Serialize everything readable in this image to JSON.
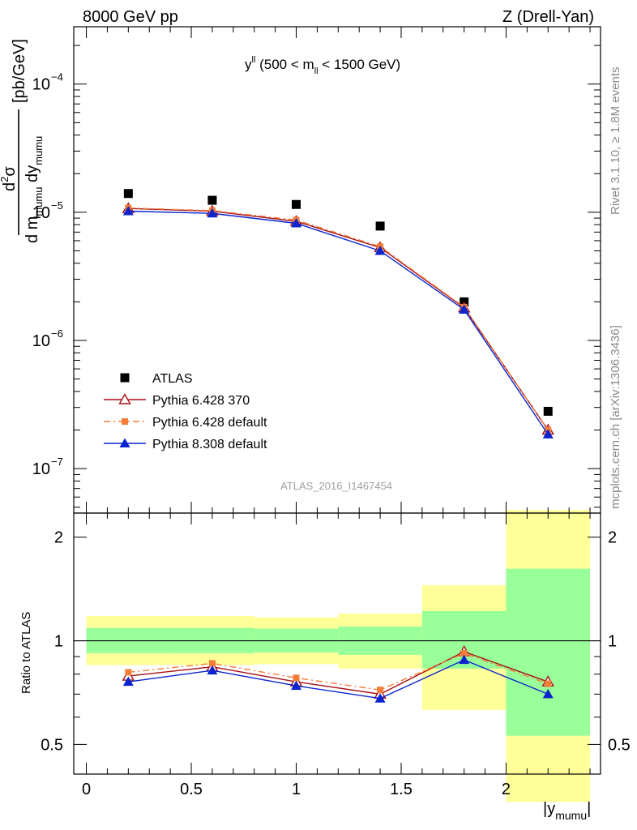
{
  "header": {
    "left": "8000 GeV pp",
    "right": "Z (Drell-Yan)"
  },
  "side_labels": {
    "rivet": "Rivet 3.1.10, ≥ 1.8M events",
    "mcplots": "mcplots.cern.ch [arXiv:1306.3436]"
  },
  "upper_panel": {
    "title": "y^ll (500 < m_ll < 1500 GeV)",
    "ylabel": "d²σ / d m_mumu dy_mumu [pb/GeV]",
    "watermark": "ATLAS_2016_I1467454",
    "y_ticks": [
      "10^-7",
      "10^-6",
      "10^-5",
      "10^-4"
    ]
  },
  "lower_panel": {
    "ylabel": "Ratio to ATLAS",
    "y_ticks": [
      "0.5",
      "1",
      "2"
    ],
    "x_ticks": [
      "0",
      "0.5",
      "1",
      "1.5",
      "2"
    ],
    "xlabel": "|y_mumu|"
  },
  "legend": [
    {
      "label": "ATLAS",
      "color": "#000000",
      "marker": "filled-square"
    },
    {
      "label": "Pythia 6.428 370",
      "color": "#a50f15",
      "marker": "open-triangle"
    },
    {
      "label": "Pythia 6.428 default",
      "color": "#f47d3a",
      "marker": "filled-square-dashdot"
    },
    {
      "label": "Pythia 8.308 default",
      "color": "#0b24ce",
      "marker": "filled-triangle"
    }
  ],
  "chart_data": [
    {
      "type": "scatter",
      "panel": "main",
      "yscale": "log",
      "xlim": [
        -0.06,
        2.45
      ],
      "ylim": [
        4.5e-08,
        0.00028
      ],
      "x": [
        0.2,
        0.6,
        1.0,
        1.4,
        1.8,
        2.2
      ],
      "series": [
        {
          "name": "ATLAS",
          "values": [
            1.4e-05,
            1.24e-05,
            1.15e-05,
            7.8e-06,
            2e-06,
            2.8e-07
          ]
        },
        {
          "name": "Pythia 6.428 370",
          "values": [
            1.07e-05,
            1.02e-05,
            8.5e-06,
            5.3e-06,
            1.8e-06,
            2e-07
          ]
        },
        {
          "name": "Pythia 6.428 default",
          "values": [
            1.08e-05,
            1.03e-05,
            8.7e-06,
            5.4e-06,
            1.82e-06,
            2e-07
          ]
        },
        {
          "name": "Pythia 8.308 default",
          "values": [
            1.02e-05,
            9.8e-06,
            8.2e-06,
            5e-06,
            1.74e-06,
            1.85e-07
          ]
        }
      ]
    },
    {
      "type": "line",
      "panel": "ratio",
      "yscale": "log",
      "xlim": [
        -0.06,
        2.45
      ],
      "ylim": [
        0.41,
        2.35
      ],
      "x": [
        0.2,
        0.6,
        1.0,
        1.4,
        1.8,
        2.2
      ],
      "bands": [
        {
          "xlo": 0.0,
          "xhi": 0.4,
          "inner": [
            0.92,
            1.09
          ],
          "outer": [
            0.85,
            1.18
          ]
        },
        {
          "xlo": 0.4,
          "xhi": 0.8,
          "inner": [
            0.92,
            1.09
          ],
          "outer": [
            0.85,
            1.18
          ]
        },
        {
          "xlo": 0.8,
          "xhi": 1.2,
          "inner": [
            0.925,
            1.085
          ],
          "outer": [
            0.855,
            1.17
          ]
        },
        {
          "xlo": 1.2,
          "xhi": 1.6,
          "inner": [
            0.91,
            1.1
          ],
          "outer": [
            0.83,
            1.2
          ]
        },
        {
          "xlo": 1.6,
          "xhi": 2.0,
          "inner": [
            0.83,
            1.22
          ],
          "outer": [
            0.63,
            1.45
          ]
        },
        {
          "xlo": 2.0,
          "xhi": 2.4,
          "inner": [
            0.53,
            1.62
          ],
          "outer": [
            0.34,
            2.4
          ]
        }
      ],
      "series": [
        {
          "name": "Pythia 6.428 370",
          "values": [
            0.79,
            0.84,
            0.76,
            0.7,
            0.93,
            0.76
          ]
        },
        {
          "name": "Pythia 6.428 default",
          "values": [
            0.81,
            0.86,
            0.78,
            0.72,
            0.92,
            0.75
          ]
        },
        {
          "name": "Pythia 8.308 default",
          "values": [
            0.76,
            0.82,
            0.74,
            0.68,
            0.88,
            0.7
          ]
        }
      ]
    }
  ]
}
